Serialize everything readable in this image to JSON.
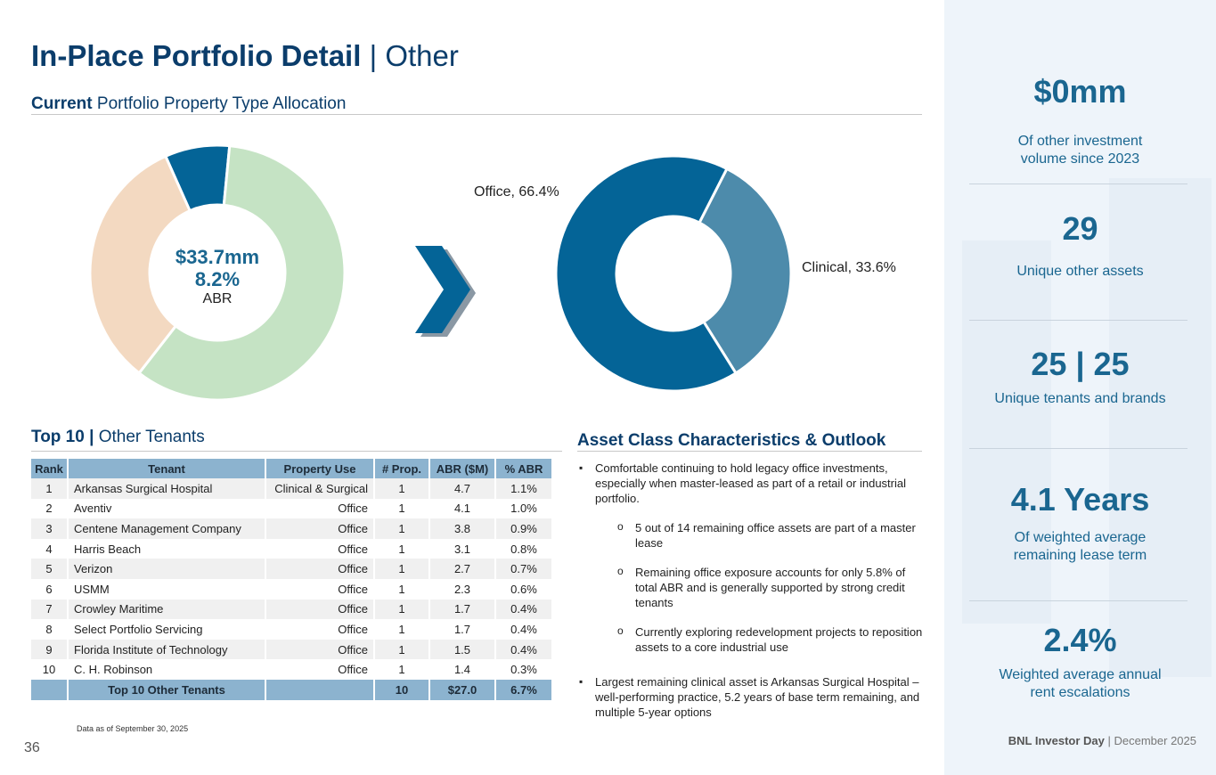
{
  "page": {
    "title_bold": "In-Place Portfolio Detail",
    "title_rest": " | Other",
    "page_number": "36",
    "data_note": "Data as of September 30, 2025",
    "footer_bold": "BNL Investor Day",
    "footer_rest": " | December 2025"
  },
  "allocation": {
    "heading_bold": "Current",
    "heading_rest": " Portfolio Property Type Allocation",
    "center_value": "$33.7mm",
    "center_pct": "8.2%",
    "center_label": "ABR"
  },
  "chart_data": [
    {
      "type": "pie",
      "variant": "donut",
      "slices": [
        {
          "value": 8.2,
          "color": "#046497"
        },
        {
          "value": 59.0,
          "color": "#c5e3c4"
        },
        {
          "value": 32.8,
          "color": "#f3d9c1"
        }
      ]
    },
    {
      "type": "pie",
      "variant": "donut",
      "categories": [
        "Office",
        "Clinical"
      ],
      "values": [
        66.4,
        33.6
      ],
      "labels": [
        "Office, 66.4%",
        "Clinical, 33.6%"
      ],
      "colors": [
        "#046497",
        "#4d8bab"
      ]
    }
  ],
  "tenants": {
    "heading_bold": "Top 10 |",
    "heading_rest": " Other Tenants",
    "columns": [
      "Rank",
      "Tenant",
      "Property Use",
      "# Prop.",
      "ABR ($M)",
      "% ABR"
    ],
    "rows": [
      [
        "1",
        "Arkansas Surgical Hospital",
        "Clinical & Surgical",
        "1",
        "4.7",
        "1.1%"
      ],
      [
        "2",
        "Aventiv",
        "Office",
        "1",
        "4.1",
        "1.0%"
      ],
      [
        "3",
        "Centene Management Company",
        "Office",
        "1",
        "3.8",
        "0.9%"
      ],
      [
        "4",
        "Harris Beach",
        "Office",
        "1",
        "3.1",
        "0.8%"
      ],
      [
        "5",
        "Verizon",
        "Office",
        "1",
        "2.7",
        "0.7%"
      ],
      [
        "6",
        "USMM",
        "Office",
        "1",
        "2.3",
        "0.6%"
      ],
      [
        "7",
        "Crowley Maritime",
        "Office",
        "1",
        "1.7",
        "0.4%"
      ],
      [
        "8",
        "Select Portfolio Servicing",
        "Office",
        "1",
        "1.7",
        "0.4%"
      ],
      [
        "9",
        "Florida Institute of Technology",
        "Office",
        "1",
        "1.5",
        "0.4%"
      ],
      [
        "10",
        "C. H. Robinson",
        "Office",
        "1",
        "1.4",
        "0.3%"
      ]
    ],
    "total": [
      "",
      "Top 10 Other Tenants",
      "",
      "10",
      "$27.0",
      "6.7%"
    ]
  },
  "outlook": {
    "heading": "Asset Class Characteristics & Outlook",
    "bullet1": "Comfortable continuing to hold legacy office investments, especially when master-leased as part of a retail or industrial portfolio.",
    "sub1": "5 out of 14 remaining office assets are part of a master lease",
    "sub2": "Remaining office exposure accounts for only 5.8% of total ABR and is generally supported by strong credit tenants",
    "sub3": "Currently exploring redevelopment projects to reposition assets to a core industrial use",
    "bullet2": "Largest remaining clinical asset is Arkansas Surgical Hospital – well-performing practice, 5.2 years of base term remaining, and multiple 5-year options"
  },
  "kpis": [
    {
      "value": "$0mm",
      "label": "Of other investment volume since 2023"
    },
    {
      "value": "29",
      "label": "Unique other assets"
    },
    {
      "value": "25 | 25",
      "label": "Unique tenants and brands"
    },
    {
      "value": "4.1 Years",
      "label": "Of weighted average remaining lease term"
    },
    {
      "value": "2.4%",
      "label": "Weighted average annual rent escalations"
    }
  ],
  "colors": {
    "navy": "#0b3d6b",
    "accent": "#1a6690",
    "table_header": "#8cb3cf"
  }
}
